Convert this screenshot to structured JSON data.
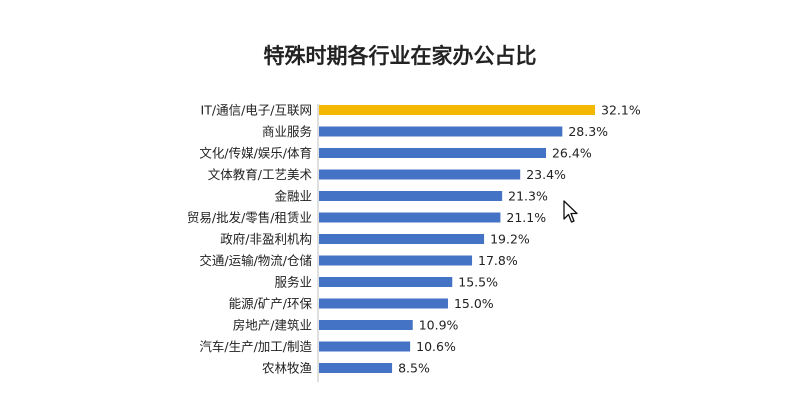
{
  "chart_data": {
    "type": "bar",
    "orientation": "horizontal",
    "title": "特殊时期各行业在家办公占比",
    "categories": [
      "IT/通信/电子/互联网",
      "商业服务",
      "文化/传媒/娱乐/体育",
      "文体教育/工艺美术",
      "金融业",
      "贸易/批发/零售/租赁业",
      "政府/非盈利机构",
      "交通/运输/物流/仓储",
      "服务业",
      "能源/矿产/环保",
      "房地产/建筑业",
      "汽车/生产/加工/制造",
      "农林牧渔"
    ],
    "values": [
      32.1,
      28.3,
      26.4,
      23.4,
      21.3,
      21.1,
      19.2,
      17.8,
      15.5,
      15.0,
      10.9,
      10.6,
      8.5
    ],
    "value_labels": [
      "32.1%",
      "28.3%",
      "26.4%",
      "23.4%",
      "21.3%",
      "21.1%",
      "19.2%",
      "17.8%",
      "15.5%",
      "15.0%",
      "10.9%",
      "10.6%",
      "8.5%"
    ],
    "xlim": [
      0,
      32.1
    ],
    "grid": false,
    "highlight_color": "#F5B800",
    "bar_color": "#4472C4"
  }
}
